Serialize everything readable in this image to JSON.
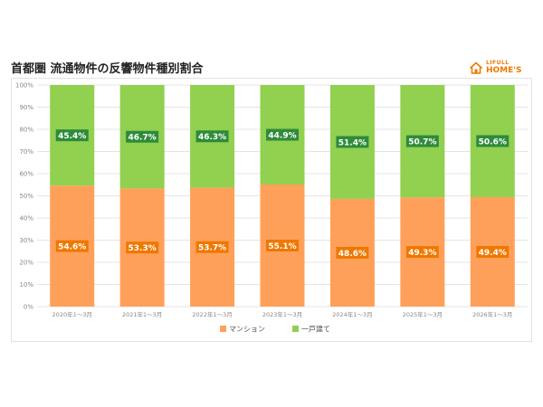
{
  "title": "首都圏 流通物件の反響物件種別割合",
  "logo": {
    "top": "LIFULL",
    "main": "HOME'S"
  },
  "colors": {
    "mansion": "#ffa05a",
    "house": "#92d050",
    "mansion_label": "#ee7800",
    "house_label": "#2e8b3a",
    "axis_text": "#888888",
    "grid": "#e4e4e4"
  },
  "chart_data": {
    "type": "bar",
    "stacked": true,
    "categories": [
      "2020年1〜3月",
      "2021年1〜3月",
      "2022年1〜3月",
      "2023年1〜3月",
      "2024年1〜3月",
      "2025年1〜3月",
      "2026年1〜3月"
    ],
    "series": [
      {
        "name": "マンション",
        "values": [
          54.6,
          53.3,
          53.7,
          55.1,
          48.6,
          49.3,
          49.4
        ],
        "labels": [
          "54.6%",
          "53.3%",
          "53.7%",
          "55.1%",
          "48.6%",
          "49.3%",
          "49.4%"
        ]
      },
      {
        "name": "一戸建て",
        "values": [
          45.4,
          46.7,
          46.3,
          44.9,
          51.4,
          50.7,
          50.6
        ],
        "labels": [
          "45.4%",
          "46.7%",
          "46.3%",
          "44.9%",
          "51.4%",
          "50.7%",
          "50.6%"
        ]
      }
    ],
    "yticks": [
      "0%",
      "10%",
      "20%",
      "30%",
      "40%",
      "50%",
      "60%",
      "70%",
      "80%",
      "90%",
      "100%"
    ],
    "ylim": [
      0,
      100
    ],
    "grid": true,
    "legend": "bottom"
  }
}
